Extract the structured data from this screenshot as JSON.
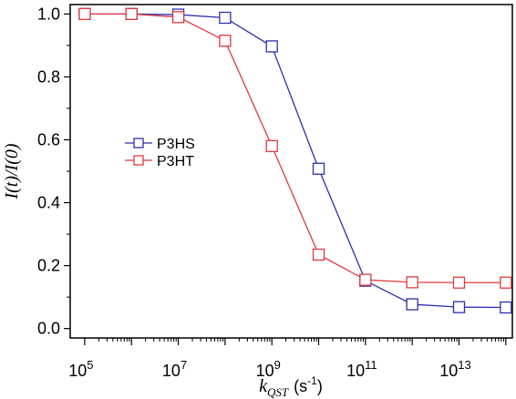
{
  "chart_data": {
    "type": "line",
    "title": "",
    "xlabel": {
      "main": "k",
      "subscript": "QST",
      "unit": "(s",
      "unit_sup": "-1",
      "unit_end": ")"
    },
    "ylabel": "I(t)/I(0)",
    "xscale": "log",
    "xlim_exponent": [
      5,
      14
    ],
    "ylim": [
      -0.03,
      1.03
    ],
    "x_ticks": [
      {
        "base": "10",
        "exp": "5",
        "value": 5
      },
      {
        "base": "10",
        "exp": "7",
        "value": 7
      },
      {
        "base": "10",
        "exp": "9",
        "value": 9
      },
      {
        "base": "10",
        "exp": "11",
        "value": 11
      },
      {
        "base": "10",
        "exp": "13",
        "value": 13
      }
    ],
    "y_ticks": [
      "0.0",
      "0.2",
      "0.4",
      "0.6",
      "0.8",
      "1.0"
    ],
    "grid": false,
    "legend_position": "middle-left",
    "series": [
      {
        "name": "P3HS",
        "color": "#2b2fae",
        "marker": "open-square",
        "x": [
          100000.0,
          1000000.0,
          10000000.0,
          100000000.0,
          1000000000.0,
          10000000000.0,
          100000000000.0,
          1000000000000.0,
          10000000000000.0,
          100000000000000.0
        ],
        "values": [
          1.0,
          1.0,
          0.998,
          0.988,
          0.897,
          0.508,
          0.152,
          0.077,
          0.068,
          0.067
        ]
      },
      {
        "name": "P3HT",
        "color": "#e0393e",
        "marker": "open-square",
        "x": [
          100000.0,
          1000000.0,
          10000000.0,
          100000000.0,
          1000000000.0,
          10000000000.0,
          100000000000.0,
          1000000000000.0,
          10000000000000.0,
          100000000000000.0
        ],
        "values": [
          1.0,
          1.0,
          0.99,
          0.915,
          0.58,
          0.235,
          0.155,
          0.147,
          0.146,
          0.146
        ]
      }
    ]
  }
}
